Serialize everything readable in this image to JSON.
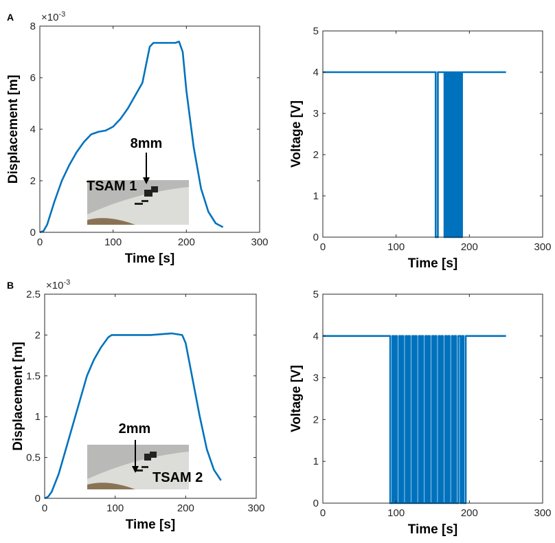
{
  "chart_data": [
    {
      "type": "line",
      "panel_label": "A",
      "xlabel": "Time [s]",
      "ylabel": "Displacement [m]",
      "y_scale_label": {
        "base": "×10",
        "exponent": "-3"
      },
      "xlim": [
        0,
        300
      ],
      "xticks": [
        0,
        100,
        200,
        300
      ],
      "ylim": [
        0,
        8
      ],
      "yticks": [
        0,
        2,
        4,
        6,
        8
      ],
      "annotations": [
        "8mm",
        "TSAM 1"
      ],
      "series": [
        {
          "color": "#0072bd",
          "x": [
            0,
            5,
            10,
            20,
            30,
            40,
            50,
            60,
            70,
            80,
            90,
            100,
            110,
            120,
            130,
            140,
            145,
            150,
            155,
            170,
            185,
            190,
            195,
            200,
            210,
            220,
            230,
            240,
            250
          ],
          "values": [
            0,
            0.05,
            0.3,
            1.2,
            2.0,
            2.6,
            3.1,
            3.5,
            3.8,
            3.9,
            3.95,
            4.1,
            4.4,
            4.8,
            5.3,
            5.8,
            6.5,
            7.2,
            7.35,
            7.35,
            7.35,
            7.4,
            7.0,
            5.5,
            3.3,
            1.7,
            0.8,
            0.35,
            0.2
          ]
        }
      ]
    },
    {
      "type": "line",
      "xlabel": "Time [s]",
      "ylabel": "Voltage [V]",
      "xlim": [
        0,
        300
      ],
      "xticks": [
        0,
        100,
        200,
        300
      ],
      "ylim": [
        0,
        5
      ],
      "yticks": [
        0,
        1,
        2,
        3,
        4,
        5
      ],
      "series": [
        {
          "color": "#0072bd",
          "x": [
            0,
            154,
            154,
            157,
            157,
            166,
            166,
            168,
            168,
            170,
            170,
            172,
            172,
            174,
            174,
            176,
            176,
            178,
            178,
            180,
            180,
            181,
            181,
            183,
            183,
            185,
            185,
            187,
            187,
            188,
            188,
            190,
            190,
            250
          ],
          "values": [
            4,
            4,
            0,
            0,
            4,
            4,
            0,
            0,
            4,
            4,
            0,
            0,
            4,
            4,
            0,
            0,
            4,
            4,
            0,
            0,
            4,
            4,
            0,
            0,
            4,
            4,
            0,
            0,
            4,
            4,
            0,
            0,
            4,
            4
          ]
        }
      ]
    },
    {
      "type": "line",
      "panel_label": "B",
      "xlabel": "Time [s]",
      "ylabel": "Displacement [m]",
      "y_scale_label": {
        "base": "×10",
        "exponent": "-3"
      },
      "xlim": [
        0,
        300
      ],
      "xticks": [
        0,
        100,
        200,
        300
      ],
      "ylim": [
        0,
        2.5
      ],
      "yticks": [
        0,
        0.5,
        1,
        1.5,
        2,
        2.5
      ],
      "annotations": [
        "2mm",
        "TSAM 2"
      ],
      "series": [
        {
          "color": "#0072bd",
          "x": [
            0,
            5,
            10,
            20,
            30,
            40,
            50,
            60,
            70,
            80,
            90,
            95,
            120,
            150,
            180,
            195,
            200,
            210,
            220,
            230,
            240,
            250
          ],
          "values": [
            0,
            0.02,
            0.08,
            0.3,
            0.6,
            0.9,
            1.2,
            1.5,
            1.7,
            1.85,
            1.97,
            2.0,
            2.0,
            2.0,
            2.02,
            2.0,
            1.9,
            1.45,
            1.0,
            0.6,
            0.35,
            0.22
          ]
        }
      ]
    },
    {
      "type": "line",
      "xlabel": "Time [s]",
      "ylabel": "Voltage [V]",
      "xlim": [
        0,
        300
      ],
      "xticks": [
        0,
        100,
        200,
        300
      ],
      "ylim": [
        0,
        5
      ],
      "yticks": [
        0,
        1,
        2,
        3,
        4,
        5
      ],
      "series": [
        {
          "color": "#0072bd",
          "x": [
            0,
            92,
            92,
            95,
            95,
            97,
            97,
            99,
            99,
            101,
            101,
            104,
            104,
            106,
            106,
            108,
            108,
            110,
            110,
            113,
            113,
            115,
            115,
            117,
            117,
            119,
            119,
            122,
            122,
            124,
            124,
            126,
            126,
            128,
            128,
            131,
            131,
            133,
            133,
            135,
            135,
            137,
            137,
            140,
            140,
            142,
            142,
            144,
            144,
            146,
            146,
            149,
            149,
            151,
            151,
            153,
            153,
            155,
            155,
            158,
            158,
            160,
            160,
            162,
            162,
            164,
            164,
            167,
            167,
            169,
            169,
            171,
            171,
            173,
            173,
            176,
            176,
            178,
            178,
            180,
            180,
            182,
            182,
            185,
            185,
            188,
            188,
            190,
            190,
            192,
            192,
            195,
            195,
            250
          ],
          "values": [
            4,
            4,
            0,
            0,
            4,
            4,
            0,
            0,
            4,
            4,
            0,
            0,
            4,
            4,
            0,
            0,
            4,
            4,
            0,
            0,
            4,
            4,
            0,
            0,
            4,
            4,
            0,
            0,
            4,
            4,
            0,
            0,
            4,
            4,
            0,
            0,
            4,
            4,
            0,
            0,
            4,
            4,
            0,
            0,
            4,
            4,
            0,
            0,
            4,
            4,
            0,
            0,
            4,
            4,
            0,
            0,
            4,
            4,
            0,
            0,
            4,
            4,
            0,
            0,
            4,
            4,
            0,
            0,
            4,
            4,
            0,
            0,
            4,
            4,
            0,
            0,
            4,
            4,
            0,
            0,
            4,
            4,
            0,
            0,
            4,
            4,
            0,
            0,
            4,
            4,
            0,
            0,
            4,
            4
          ]
        }
      ]
    }
  ]
}
